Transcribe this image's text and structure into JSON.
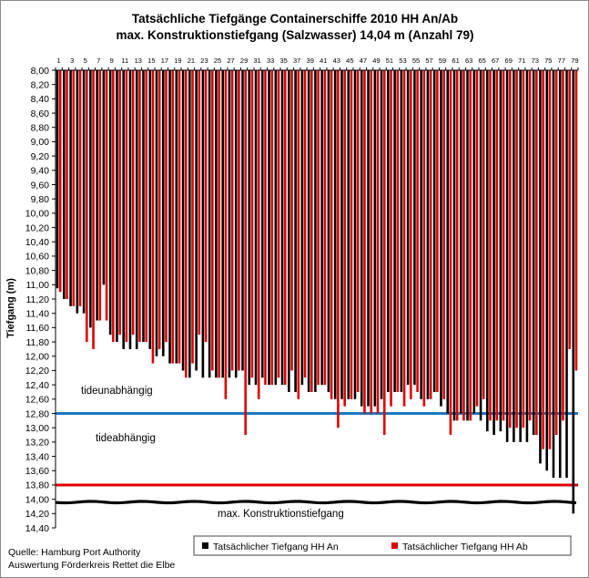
{
  "chart_data": {
    "type": "bar",
    "title": "Tatsächliche Tiefgänge Containerschiffe 2010 HH An/Ab",
    "subtitle": "max. Konstruktionstiefgang (Salzwasser) 14,04 m (Anzahl 79)",
    "xlabel": "",
    "ylabel": "Tiefgang (m)",
    "y_axis": {
      "min": 8.0,
      "max": 14.4,
      "step": 0.2,
      "inverted": true,
      "decimal_comma": true
    },
    "x_tick_labels": [
      "1",
      "3",
      "5",
      "7",
      "9",
      "11",
      "13",
      "15",
      "17",
      "19",
      "21",
      "23",
      "25",
      "27",
      "29",
      "31",
      "33",
      "35",
      "37",
      "39",
      "41",
      "43",
      "45",
      "47",
      "49",
      "51",
      "53",
      "55",
      "57",
      "59",
      "61",
      "63",
      "65",
      "67",
      "69",
      "71",
      "73",
      "75",
      "77",
      "79"
    ],
    "x": [
      1,
      2,
      3,
      4,
      5,
      6,
      7,
      8,
      9,
      10,
      11,
      12,
      13,
      14,
      15,
      16,
      17,
      18,
      19,
      20,
      21,
      22,
      23,
      24,
      25,
      26,
      27,
      28,
      29,
      30,
      31,
      32,
      33,
      34,
      35,
      36,
      37,
      38,
      39,
      40,
      41,
      42,
      43,
      44,
      45,
      46,
      47,
      48,
      49,
      50,
      51,
      52,
      53,
      54,
      55,
      56,
      57,
      58,
      59,
      60,
      61,
      62,
      63,
      64,
      65,
      66,
      67,
      68,
      69,
      70,
      71,
      72,
      73,
      74,
      75,
      76,
      77,
      78,
      79
    ],
    "series": [
      {
        "name": "Tatsächlicher Tiefgang HH An",
        "color": "#000000",
        "values": [
          11.05,
          11.2,
          11.3,
          11.4,
          11.4,
          11.6,
          11.5,
          11.0,
          11.7,
          11.8,
          11.9,
          11.9,
          11.9,
          11.8,
          11.9,
          12.0,
          12.0,
          12.1,
          12.1,
          12.2,
          12.3,
          12.2,
          12.3,
          12.3,
          12.3,
          12.3,
          12.3,
          12.3,
          12.2,
          12.4,
          12.4,
          12.3,
          12.4,
          12.4,
          12.4,
          12.5,
          12.5,
          12.4,
          12.5,
          12.5,
          12.4,
          12.5,
          12.6,
          12.6,
          12.6,
          12.6,
          12.7,
          12.7,
          12.7,
          12.6,
          12.5,
          12.5,
          12.5,
          12.4,
          12.4,
          12.6,
          12.6,
          12.5,
          12.7,
          12.8,
          12.9,
          12.8,
          12.9,
          12.8,
          12.9,
          13.05,
          13.1,
          13.05,
          13.2,
          13.2,
          13.2,
          13.2,
          13.1,
          13.5,
          13.6,
          13.7,
          13.7,
          13.7,
          14.2
        ]
      },
      {
        "name": "Tatsächlicher Tiefgang HH Ab",
        "color": "#e00000",
        "values": [
          11.1,
          11.2,
          11.3,
          11.3,
          11.8,
          11.9,
          11.5,
          11.5,
          11.8,
          11.7,
          11.8,
          11.7,
          11.8,
          11.8,
          12.1,
          11.9,
          11.8,
          12.1,
          12.1,
          12.3,
          12.1,
          11.7,
          11.8,
          12.2,
          12.3,
          12.6,
          12.2,
          12.2,
          13.1,
          12.3,
          12.6,
          12.4,
          12.4,
          12.3,
          12.4,
          12.2,
          12.6,
          12.3,
          12.5,
          12.4,
          12.4,
          12.6,
          13.0,
          12.7,
          12.6,
          12.5,
          12.8,
          12.8,
          12.8,
          13.1,
          12.7,
          12.5,
          12.7,
          12.6,
          12.5,
          12.7,
          12.6,
          12.5,
          12.6,
          13.1,
          12.9,
          12.9,
          12.9,
          12.7,
          12.6,
          12.9,
          12.9,
          12.9,
          13.0,
          13.0,
          13.0,
          12.9,
          13.1,
          13.3,
          13.3,
          13.1,
          12.9,
          11.9,
          12.2
        ]
      }
    ],
    "reference_lines": [
      {
        "y": 12.8,
        "color": "#1f77c0"
      },
      {
        "y": 13.8,
        "color": "#e00000"
      },
      {
        "y": 14.04,
        "color": "#000000"
      }
    ],
    "annotations": {
      "above_blue": "tideunabhängig",
      "below_blue": "tideabhängig",
      "max_line": "max. Konstruktionstiefgang"
    },
    "grid": false,
    "legend": "bottom-right"
  },
  "source": {
    "line1": "Quelle: Hamburg Port Authority",
    "line2": "Auswertung Förderkreis Rettet die Elbe"
  }
}
